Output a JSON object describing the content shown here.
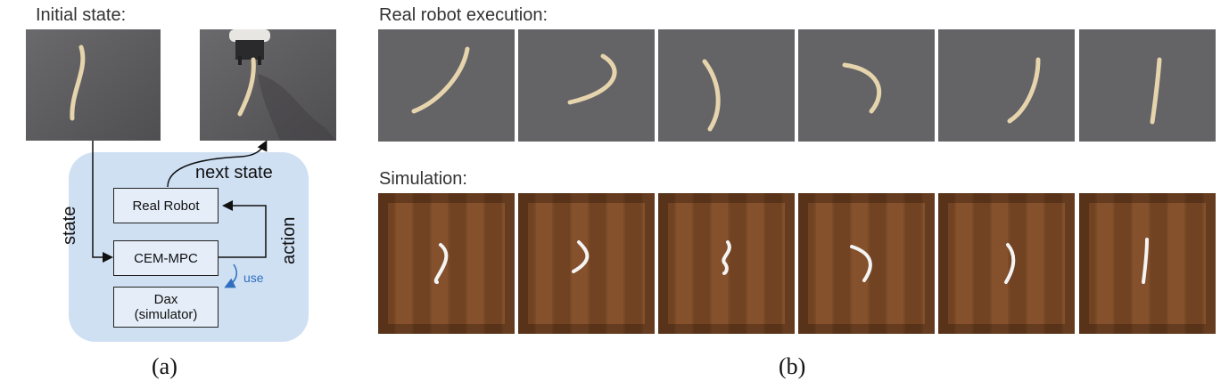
{
  "labels": {
    "initial_state": "Initial state:",
    "real_robot_execution": "Real robot execution:",
    "simulation": "Simulation:",
    "caption_a": "(a)",
    "caption_b": "(b)"
  },
  "diagram": {
    "real_robot": "Real Robot",
    "cem_mpc": "CEM-MPC",
    "dax_line1": "Dax",
    "dax_line2": "(simulator)",
    "next_state": "next state",
    "state": "state",
    "action": "action",
    "use": "use"
  },
  "colors": {
    "panel_bg": "#cfe0f3",
    "use_arrow": "#2f6fbf",
    "real_floor": "#5b5a5d",
    "rope_real": "#e6d4ad",
    "wood_floor": "#7a4a26",
    "rope_sim": "#f4f4f4"
  },
  "icons": {
    "real_rope": "rope-real-icon",
    "sim_rope": "rope-sim-icon",
    "gripper": "robot-gripper-icon"
  }
}
